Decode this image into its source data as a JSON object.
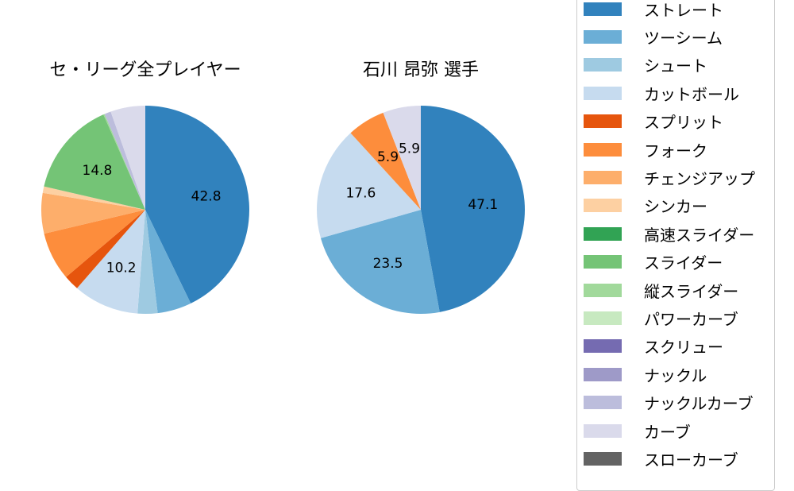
{
  "chart_data": [
    {
      "type": "pie",
      "title": "セ・リーグ全プレイヤー",
      "start_angle": 90,
      "direction": "clockwise",
      "labels": [
        "ストレート",
        "ツーシーム",
        "シュート",
        "カットボール",
        "スプリット",
        "フォーク",
        "チェンジアップ",
        "シンカー",
        "高速スライダー",
        "スライダー",
        "縦スライダー",
        "パワーカーブ",
        "スクリュー",
        "ナックル",
        "ナックルカーブ",
        "カーブ",
        "スローカーブ"
      ],
      "values": [
        42.8,
        5.3,
        3.1,
        10.2,
        2.4,
        7.5,
        6.3,
        1.0,
        0.0,
        14.8,
        0.2,
        0.0,
        0.0,
        0.0,
        1.0,
        5.4,
        0.0
      ],
      "data_labels_shown": [
        "42.8",
        "10.2",
        "14.8"
      ]
    },
    {
      "type": "pie",
      "title": "石川 昂弥  選手",
      "start_angle": 90,
      "direction": "clockwise",
      "labels": [
        "ストレート",
        "ツーシーム",
        "シュート",
        "カットボール",
        "スプリット",
        "フォーク",
        "チェンジアップ",
        "シンカー",
        "高速スライダー",
        "スライダー",
        "縦スライダー",
        "パワーカーブ",
        "スクリュー",
        "ナックル",
        "ナックルカーブ",
        "カーブ",
        "スローカーブ"
      ],
      "values": [
        47.1,
        23.5,
        0,
        17.6,
        0,
        5.9,
        0,
        0,
        0,
        0,
        0,
        0,
        0,
        0,
        0,
        5.9,
        0
      ],
      "data_labels_shown": [
        "47.1",
        "23.5",
        "17.6",
        "5.9",
        "5.9"
      ]
    }
  ],
  "titles": {
    "left": "セ・リーグ全プレイヤー",
    "right": "石川 昂弥  選手"
  },
  "legend": {
    "items": [
      {
        "label": "ストレート",
        "color": "#3182bd"
      },
      {
        "label": "ツーシーム",
        "color": "#6baed6"
      },
      {
        "label": "シュート",
        "color": "#9ecae1"
      },
      {
        "label": "カットボール",
        "color": "#c6dbef"
      },
      {
        "label": "スプリット",
        "color": "#e6550d"
      },
      {
        "label": "フォーク",
        "color": "#fd8d3c"
      },
      {
        "label": "チェンジアップ",
        "color": "#fdae6b"
      },
      {
        "label": "シンカー",
        "color": "#fdd0a2"
      },
      {
        "label": "高速スライダー",
        "color": "#31a354"
      },
      {
        "label": "スライダー",
        "color": "#74c476"
      },
      {
        "label": "縦スライダー",
        "color": "#a1d99b"
      },
      {
        "label": "パワーカーブ",
        "color": "#c7e9c0"
      },
      {
        "label": "スクリュー",
        "color": "#756bb1"
      },
      {
        "label": "ナックル",
        "color": "#9e9ac8"
      },
      {
        "label": "ナックルカーブ",
        "color": "#bcbddc"
      },
      {
        "label": "カーブ",
        "color": "#dadaeb"
      },
      {
        "label": "スローカーブ",
        "color": "#636363"
      }
    ]
  }
}
